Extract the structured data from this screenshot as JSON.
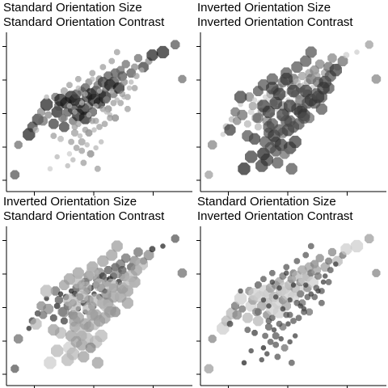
{
  "chart_data": [
    {
      "type": "scatter",
      "title_line1": "Standard Orientation Size",
      "title_line2": "Standard Orientation Contrast",
      "size_orientation": "standard",
      "contrast_orientation": "standard",
      "xlim": [
        0,
        1
      ],
      "ylim": [
        0,
        1
      ],
      "grid": false,
      "marker": "octagon",
      "marker_color": "#000000",
      "points_ref": "shared"
    },
    {
      "type": "scatter",
      "title_line1": "Inverted Orientation Size",
      "title_line2": "Inverted Orientation Contrast",
      "size_orientation": "inverted",
      "contrast_orientation": "inverted",
      "xlim": [
        0,
        1
      ],
      "ylim": [
        0,
        1
      ],
      "grid": false,
      "marker": "octagon",
      "marker_color": "#000000",
      "points_ref": "shared"
    },
    {
      "type": "scatter",
      "title_line1": "Inverted Orientation Size",
      "title_line2": "Standard Orientation Contrast",
      "size_orientation": "inverted",
      "contrast_orientation": "standard",
      "xlim": [
        0,
        1
      ],
      "ylim": [
        0,
        1
      ],
      "grid": false,
      "marker": "octagon",
      "marker_color": "#000000",
      "points_ref": "shared"
    },
    {
      "type": "scatter",
      "title_line1": "Standard Orientation Size",
      "title_line2": "Inverted Orientation Contrast",
      "size_orientation": "standard",
      "contrast_orientation": "inverted",
      "xlim": [
        0,
        1
      ],
      "ylim": [
        0,
        1
      ],
      "grid": false,
      "marker": "octagon",
      "marker_color": "#000000",
      "points_ref": "shared"
    }
  ],
  "shared_points": {
    "x": [
      0.02,
      0.04,
      0.1,
      0.12,
      0.14,
      0.15,
      0.17,
      0.18,
      0.2,
      0.21,
      0.22,
      0.24,
      0.25,
      0.26,
      0.27,
      0.28,
      0.28,
      0.29,
      0.3,
      0.3,
      0.31,
      0.32,
      0.33,
      0.33,
      0.34,
      0.35,
      0.35,
      0.36,
      0.36,
      0.37,
      0.38,
      0.38,
      0.39,
      0.4,
      0.4,
      0.41,
      0.42,
      0.42,
      0.43,
      0.44,
      0.44,
      0.45,
      0.46,
      0.46,
      0.47,
      0.48,
      0.48,
      0.49,
      0.5,
      0.5,
      0.51,
      0.52,
      0.52,
      0.53,
      0.54,
      0.55,
      0.55,
      0.56,
      0.57,
      0.58,
      0.58,
      0.59,
      0.6,
      0.6,
      0.61,
      0.62,
      0.63,
      0.64,
      0.65,
      0.66,
      0.68,
      0.7,
      0.72,
      0.75,
      0.78,
      0.8,
      0.86,
      0.93,
      0.97,
      0.2,
      0.24,
      0.26,
      0.3,
      0.33,
      0.36,
      0.38,
      0.4,
      0.42,
      0.44,
      0.46,
      0.48,
      0.5,
      0.52,
      0.54,
      0.56,
      0.58,
      0.32,
      0.34,
      0.35,
      0.37,
      0.39,
      0.41,
      0.43,
      0.45,
      0.47,
      0.49,
      0.51,
      0.53,
      0.57,
      0.59,
      0.62,
      0.64,
      0.66,
      0.68,
      0.7,
      0.36,
      0.38,
      0.4,
      0.42,
      0.44,
      0.46,
      0.48,
      0.5,
      0.54,
      0.56,
      0.6,
      0.63,
      0.67,
      0.71,
      0.74
    ],
    "y": [
      0.08,
      0.28,
      0.35,
      0.4,
      0.38,
      0.45,
      0.5,
      0.44,
      0.55,
      0.48,
      0.12,
      0.42,
      0.6,
      0.5,
      0.54,
      0.32,
      0.58,
      0.46,
      0.64,
      0.4,
      0.56,
      0.5,
      0.68,
      0.22,
      0.6,
      0.44,
      0.52,
      0.58,
      0.36,
      0.62,
      0.48,
      0.72,
      0.56,
      0.64,
      0.3,
      0.52,
      0.66,
      0.46,
      0.6,
      0.54,
      0.7,
      0.62,
      0.5,
      0.76,
      0.58,
      0.64,
      0.26,
      0.68,
      0.56,
      0.72,
      0.62,
      0.7,
      0.8,
      0.6,
      0.66,
      0.74,
      0.52,
      0.68,
      0.84,
      0.7,
      0.62,
      0.76,
      0.72,
      0.9,
      0.66,
      0.78,
      0.74,
      0.7,
      0.82,
      0.6,
      0.76,
      0.8,
      0.86,
      0.8,
      0.84,
      0.88,
      0.9,
      0.95,
      0.72,
      0.6,
      0.34,
      0.2,
      0.46,
      0.54,
      0.4,
      0.66,
      0.24,
      0.62,
      0.36,
      0.72,
      0.44,
      0.64,
      0.52,
      0.58,
      0.48,
      0.56,
      0.14,
      0.3,
      0.18,
      0.26,
      0.34,
      0.16,
      0.28,
      0.22,
      0.38,
      0.12,
      0.3,
      0.42,
      0.64,
      0.46,
      0.56,
      0.6,
      0.52,
      0.7,
      0.66,
      0.5,
      0.42,
      0.56,
      0.38,
      0.48,
      0.44,
      0.54,
      0.4,
      0.5,
      0.46,
      0.58,
      0.62,
      0.66,
      0.74,
      0.78
    ],
    "size": [
      0.6,
      0.5,
      0.9,
      0.7,
      0.3,
      0.8,
      0.5,
      0.6,
      0.9,
      0.4,
      0.2,
      0.7,
      0.5,
      0.8,
      0.6,
      0.3,
      0.9,
      0.5,
      0.4,
      0.7,
      0.8,
      0.6,
      0.3,
      0.2,
      0.9,
      0.5,
      0.7,
      0.8,
      0.4,
      0.6,
      0.9,
      0.3,
      0.7,
      0.5,
      0.4,
      0.8,
      0.6,
      0.9,
      0.7,
      0.5,
      0.4,
      0.8,
      0.6,
      0.3,
      0.9,
      0.7,
      0.2,
      0.5,
      0.8,
      0.4,
      0.6,
      0.7,
      0.3,
      0.9,
      0.5,
      0.6,
      0.4,
      0.8,
      0.3,
      0.7,
      0.5,
      0.6,
      0.4,
      0.3,
      0.8,
      0.5,
      0.6,
      0.4,
      0.5,
      0.3,
      0.6,
      0.4,
      0.5,
      0.7,
      0.4,
      0.8,
      0.9,
      0.6,
      0.5,
      0.2,
      0.3,
      0.2,
      0.4,
      0.2,
      0.3,
      0.2,
      0.3,
      0.2,
      0.4,
      0.2,
      0.3,
      0.2,
      0.3,
      0.4,
      0.2,
      0.3,
      0.2,
      0.3,
      0.2,
      0.3,
      0.2,
      0.3,
      0.2,
      0.4,
      0.2,
      0.3,
      0.2,
      0.3,
      0.2,
      0.4,
      0.3,
      0.2,
      0.3,
      0.2,
      0.3,
      0.2,
      0.3,
      0.2,
      0.3,
      0.2,
      0.3,
      0.2,
      0.3,
      0.2,
      0.3,
      0.2,
      0.3,
      0.2,
      0.3,
      0.2
    ],
    "contrast": [
      0.7,
      0.6,
      0.9,
      0.8,
      0.3,
      0.8,
      0.5,
      0.6,
      0.9,
      0.5,
      0.2,
      0.8,
      0.6,
      0.9,
      0.7,
      0.3,
      0.9,
      0.6,
      0.4,
      0.8,
      0.9,
      0.7,
      0.4,
      0.2,
      0.9,
      0.6,
      0.8,
      0.9,
      0.4,
      0.7,
      0.9,
      0.4,
      0.8,
      0.6,
      0.4,
      0.9,
      0.7,
      0.9,
      0.8,
      0.6,
      0.5,
      0.9,
      0.7,
      0.4,
      0.9,
      0.8,
      0.3,
      0.6,
      0.9,
      0.5,
      0.7,
      0.8,
      0.4,
      0.9,
      0.6,
      0.7,
      0.5,
      0.9,
      0.4,
      0.8,
      0.6,
      0.7,
      0.5,
      0.4,
      0.9,
      0.6,
      0.7,
      0.5,
      0.6,
      0.4,
      0.7,
      0.5,
      0.6,
      0.8,
      0.5,
      0.9,
      0.9,
      0.7,
      0.6,
      0.3,
      0.4,
      0.3,
      0.5,
      0.3,
      0.4,
      0.3,
      0.4,
      0.3,
      0.5,
      0.3,
      0.4,
      0.3,
      0.4,
      0.5,
      0.3,
      0.4,
      0.3,
      0.4,
      0.3,
      0.4,
      0.3,
      0.4,
      0.3,
      0.5,
      0.3,
      0.4,
      0.3,
      0.4,
      0.3,
      0.5,
      0.4,
      0.3,
      0.4,
      0.3,
      0.4,
      0.3,
      0.4,
      0.3,
      0.4,
      0.3,
      0.4,
      0.3,
      0.4,
      0.3,
      0.4,
      0.3,
      0.4,
      0.3,
      0.4,
      0.3
    ]
  }
}
